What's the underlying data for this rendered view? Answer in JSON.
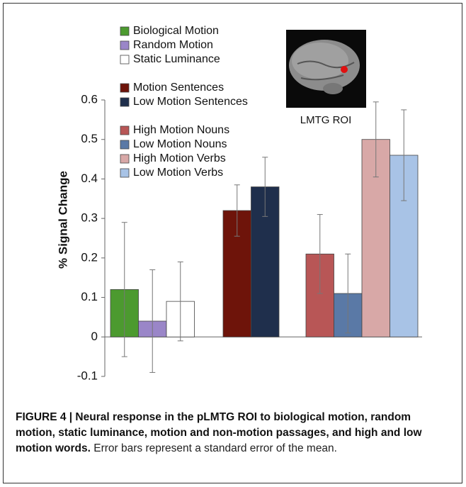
{
  "chart_data": {
    "type": "bar",
    "y_label": "% Signal Change",
    "inset_label": "LMTG ROI",
    "categories": [
      null,
      null,
      null
    ],
    "ylim": [
      -0.1,
      0.6
    ],
    "yticks": [
      -0.1,
      0,
      0.1,
      0.2,
      0.3,
      0.4,
      0.5,
      0.6
    ],
    "series": [
      {
        "name": "Biological Motion",
        "color": "#4c9a2f",
        "values": [
          0.12,
          null,
          null
        ],
        "errors": [
          0.17,
          null,
          null
        ]
      },
      {
        "name": "Random Motion",
        "color": "#9a86c8",
        "values": [
          0.04,
          null,
          null
        ],
        "errors": [
          0.13,
          null,
          null
        ]
      },
      {
        "name": "Static Luminance",
        "color": "#ffffff",
        "values": [
          0.09,
          null,
          null
        ],
        "errors": [
          0.1,
          null,
          null
        ]
      },
      {
        "name": "Motion Sentences",
        "color": "#6e140a",
        "values": [
          null,
          0.32,
          null
        ],
        "errors": [
          null,
          0.065,
          null
        ]
      },
      {
        "name": "Low Motion Sentences",
        "color": "#1f2f4c",
        "values": [
          null,
          0.38,
          null
        ],
        "errors": [
          null,
          0.075,
          null
        ]
      },
      {
        "name": "High Motion Nouns",
        "color": "#b85656",
        "values": [
          null,
          null,
          0.21
        ],
        "errors": [
          null,
          null,
          0.1
        ]
      },
      {
        "name": "Low Motion Nouns",
        "color": "#5a79a6",
        "values": [
          null,
          null,
          0.11
        ],
        "errors": [
          null,
          null,
          0.1
        ]
      },
      {
        "name": "High Motion Verbs",
        "color": "#d8a8a7",
        "values": [
          null,
          null,
          0.5
        ],
        "errors": [
          null,
          null,
          0.095
        ]
      },
      {
        "name": "Low Motion Verbs",
        "color": "#a8c3e6",
        "values": [
          null,
          null,
          0.46
        ],
        "errors": [
          null,
          null,
          0.115
        ]
      }
    ]
  },
  "caption": {
    "bold": "FIGURE 4 | Neural response in the pLMTG ROI to biological motion, random motion, static luminance, motion and non-motion passages, and high and low motion words.",
    "text": "Error bars represent a standard error of the mean."
  }
}
